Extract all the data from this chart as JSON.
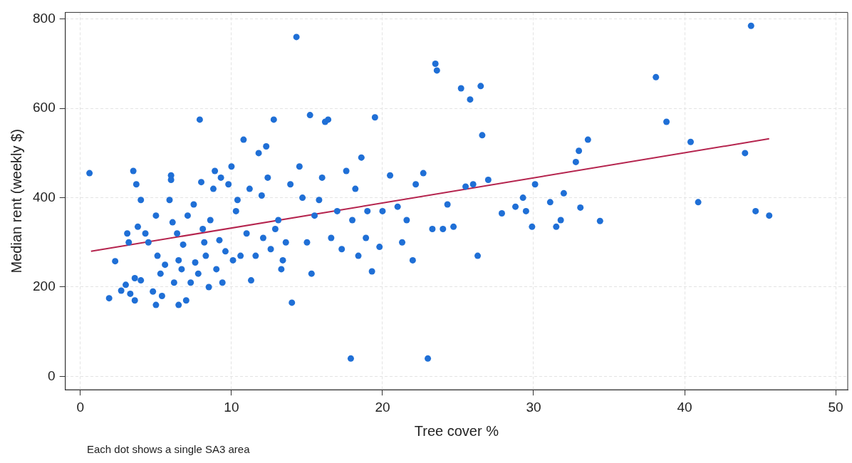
{
  "chart_data": {
    "type": "scatter",
    "xlabel": "Tree cover %",
    "ylabel": "Median rent (weekly $)",
    "annotations": [
      "Each dot shows a single SA3 area"
    ],
    "xlim": [
      -1,
      50.8
    ],
    "ylim": [
      -30,
      815
    ],
    "xticks": [
      0,
      10,
      20,
      30,
      40,
      50
    ],
    "yticks": [
      0,
      200,
      400,
      600,
      800
    ],
    "grid": true,
    "marker": "circle",
    "series": [
      {
        "color": "#1f6fd6",
        "x": [
          0.6,
          1.9,
          2.3,
          2.7,
          3.0,
          3.1,
          3.2,
          3.3,
          3.5,
          3.6,
          3.6,
          3.7,
          3.8,
          4.0,
          4.0,
          4.3,
          4.5,
          4.8,
          5.0,
          5.0,
          5.1,
          5.3,
          5.4,
          5.6,
          5.9,
          6.0,
          6.0,
          6.1,
          6.2,
          6.4,
          6.5,
          6.5,
          6.7,
          6.8,
          7.0,
          7.1,
          7.3,
          7.5,
          7.6,
          7.8,
          7.9,
          8.0,
          8.1,
          8.2,
          8.3,
          8.5,
          8.6,
          8.8,
          8.9,
          9.0,
          9.2,
          9.3,
          9.4,
          9.6,
          9.8,
          10.0,
          10.1,
          10.3,
          10.4,
          10.6,
          10.8,
          11.0,
          11.2,
          11.3,
          11.6,
          11.8,
          12.0,
          12.1,
          12.3,
          12.4,
          12.6,
          12.8,
          12.9,
          13.1,
          13.3,
          13.4,
          13.6,
          13.9,
          14.0,
          14.3,
          14.5,
          14.7,
          15.0,
          15.2,
          15.3,
          15.5,
          15.8,
          16.0,
          16.2,
          16.4,
          16.6,
          17.0,
          17.3,
          17.6,
          17.9,
          18.0,
          18.2,
          18.4,
          18.6,
          18.9,
          19.0,
          19.3,
          19.5,
          19.8,
          20.0,
          20.5,
          21.0,
          21.3,
          21.6,
          22.0,
          22.2,
          22.7,
          23.0,
          23.3,
          23.5,
          23.6,
          24.0,
          24.3,
          24.7,
          25.2,
          25.5,
          25.8,
          26.0,
          26.3,
          26.5,
          26.6,
          27.0,
          27.9,
          28.8,
          29.3,
          29.5,
          29.9,
          30.1,
          31.1,
          31.5,
          31.8,
          32.0,
          32.8,
          33.0,
          33.1,
          33.6,
          34.4,
          38.1,
          38.8,
          40.4,
          40.9,
          44.0,
          44.4,
          44.7,
          45.6
        ],
        "values": [
          455,
          175,
          258,
          192,
          205,
          320,
          300,
          185,
          460,
          170,
          220,
          430,
          335,
          395,
          215,
          320,
          300,
          190,
          360,
          160,
          270,
          230,
          180,
          250,
          395,
          440,
          450,
          345,
          210,
          320,
          160,
          260,
          240,
          295,
          170,
          360,
          210,
          385,
          255,
          230,
          575,
          435,
          330,
          300,
          270,
          200,
          350,
          420,
          460,
          240,
          305,
          445,
          210,
          280,
          430,
          470,
          260,
          370,
          395,
          270,
          530,
          320,
          420,
          215,
          270,
          500,
          405,
          310,
          515,
          445,
          285,
          575,
          330,
          350,
          240,
          260,
          300,
          430,
          165,
          760,
          470,
          400,
          300,
          585,
          230,
          360,
          395,
          445,
          570,
          575,
          310,
          370,
          285,
          460,
          40,
          350,
          420,
          270,
          490,
          310,
          370,
          235,
          580,
          290,
          370,
          450,
          380,
          300,
          350,
          260,
          430,
          455,
          40,
          330,
          700,
          685,
          330,
          385,
          335,
          645,
          425,
          620,
          430,
          270,
          650,
          540,
          440,
          365,
          380,
          400,
          370,
          335,
          430,
          390,
          335,
          350,
          410,
          480,
          505,
          378,
          530,
          348,
          670,
          570,
          525,
          390,
          500,
          785,
          370,
          360
        ]
      },
      {
        "type": "line",
        "marker": "none",
        "color": "#b5244e",
        "x": [
          0.7,
          45.6
        ],
        "values": [
          280,
          532
        ]
      }
    ]
  }
}
